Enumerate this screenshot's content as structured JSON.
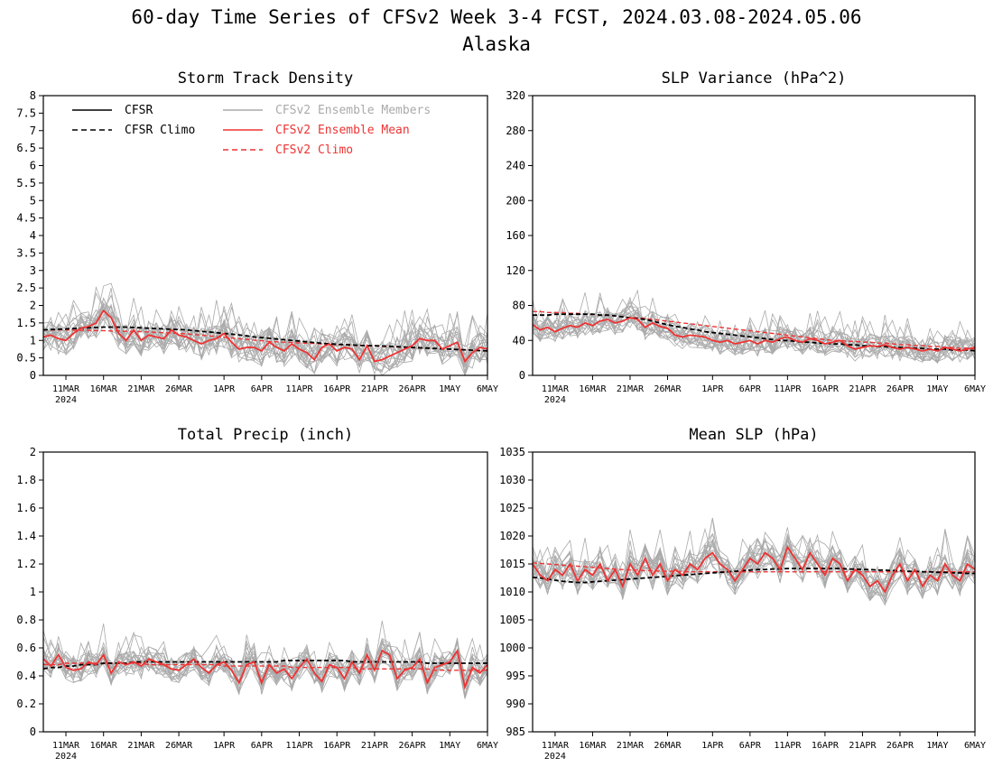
{
  "page": {
    "title_line1": "60-day Time Series of CFSv2 Week 3-4 FCST, 2024.03.08-2024.05.06",
    "title_line2": "Alaska"
  },
  "legend": {
    "cfsr": "CFSR",
    "cfsr_climo": "CFSR Climo",
    "ens_members": "CFSv2 Ensemble Members",
    "ens_mean": "CFSv2 Ensemble Mean",
    "cfsv2_climo": "CFSv2 Climo"
  },
  "colors": {
    "cfsr": "#000000",
    "cfsr_climo": "#000000",
    "ens_members": "#aaaaaa",
    "ens_mean": "#ee3333",
    "cfsv2_climo": "#ee3333"
  },
  "x_axis": {
    "ticks": [
      "11MAR",
      "16MAR",
      "21MAR",
      "26MAR",
      "1APR",
      "6APR",
      "11APR",
      "16APR",
      "21APR",
      "26APR",
      "1MAY",
      "6MAY"
    ],
    "tick_day_index": [
      3,
      8,
      13,
      18,
      24,
      29,
      34,
      39,
      44,
      49,
      54,
      59
    ],
    "year_label": "2024",
    "start_date": "2024-03-08",
    "end_date": "2024-05-06"
  },
  "chart_data": [
    {
      "type": "line",
      "title": "Storm Track Density",
      "ylim": [
        0,
        8
      ],
      "yticks": [
        "0",
        "0.5",
        "1",
        "1.5",
        "2",
        "2.5",
        "3",
        "3.5",
        "4",
        "4.5",
        "5",
        "5.5",
        "6",
        "6.5",
        "7",
        "7.5",
        "8"
      ],
      "legend_position": "top-left",
      "series": [
        {
          "name": "CFSv2 Ensemble Mean",
          "values": [
            1.1,
            1.15,
            1.05,
            1.0,
            1.2,
            1.35,
            1.4,
            1.5,
            1.85,
            1.65,
            1.2,
            1.0,
            1.3,
            1.0,
            1.15,
            1.1,
            1.05,
            1.3,
            1.15,
            1.1,
            1.0,
            0.9,
            1.0,
            1.05,
            1.2,
            0.95,
            0.75,
            0.8,
            0.8,
            0.7,
            0.95,
            0.8,
            0.7,
            0.9,
            0.75,
            0.65,
            0.45,
            0.8,
            0.9,
            0.7,
            0.8,
            0.75,
            0.45,
            0.85,
            0.4,
            0.45,
            0.55,
            0.65,
            0.75,
            0.85,
            1.05,
            1.0,
            1.0,
            0.75,
            0.85,
            0.95,
            0.4,
            0.65,
            0.8,
            0.75
          ]
        },
        {
          "name": "CFSR Climo",
          "values": [
            1.3,
            1.31,
            1.32,
            1.33,
            1.34,
            1.35,
            1.36,
            1.37,
            1.38,
            1.38,
            1.38,
            1.38,
            1.37,
            1.36,
            1.35,
            1.34,
            1.33,
            1.32,
            1.31,
            1.3,
            1.28,
            1.26,
            1.24,
            1.22,
            1.2,
            1.18,
            1.16,
            1.13,
            1.1,
            1.08,
            1.06,
            1.04,
            1.02,
            1.0,
            0.98,
            0.96,
            0.94,
            0.92,
            0.9,
            0.89,
            0.88,
            0.87,
            0.86,
            0.85,
            0.85,
            0.84,
            0.83,
            0.82,
            0.81,
            0.8,
            0.79,
            0.78,
            0.77,
            0.76,
            0.75,
            0.74,
            0.73,
            0.72,
            0.71,
            0.7
          ]
        },
        {
          "name": "CFSv2 Climo",
          "values": [
            1.3,
            1.3,
            1.3,
            1.3,
            1.29,
            1.29,
            1.29,
            1.28,
            1.28,
            1.27,
            1.27,
            1.26,
            1.26,
            1.25,
            1.24,
            1.23,
            1.22,
            1.21,
            1.2,
            1.19,
            1.17,
            1.15,
            1.13,
            1.11,
            1.09,
            1.07,
            1.05,
            1.03,
            1.01,
            0.99,
            0.97,
            0.96,
            0.95,
            0.94,
            0.93,
            0.92,
            0.91,
            0.9,
            0.89,
            0.88,
            0.87,
            0.86,
            0.85,
            0.85,
            0.84,
            0.83,
            0.82,
            0.81,
            0.8,
            0.79,
            0.79,
            0.78,
            0.77,
            0.76,
            0.75,
            0.74,
            0.73,
            0.72,
            0.71,
            0.7
          ]
        }
      ]
    },
    {
      "type": "line",
      "title": "SLP Variance (hPa^2)",
      "ylim": [
        0,
        320
      ],
      "yticks": [
        "0",
        "40",
        "80",
        "120",
        "160",
        "200",
        "240",
        "280",
        "320"
      ],
      "series": [
        {
          "name": "CFSv2 Ensemble Mean",
          "values": [
            58,
            52,
            55,
            50,
            54,
            57,
            55,
            60,
            57,
            62,
            64,
            60,
            62,
            66,
            64,
            55,
            60,
            56,
            54,
            46,
            44,
            46,
            45,
            44,
            40,
            38,
            40,
            36,
            38,
            40,
            36,
            40,
            38,
            42,
            44,
            40,
            38,
            42,
            40,
            36,
            38,
            40,
            34,
            30,
            32,
            34,
            33,
            35,
            32,
            30,
            32,
            30,
            28,
            30,
            28,
            32,
            30,
            28,
            30,
            32
          ]
        },
        {
          "name": "CFSR Climo",
          "values": [
            69,
            69,
            69,
            70,
            70,
            70,
            70,
            70,
            70,
            69,
            69,
            68,
            67,
            66,
            65,
            64,
            62,
            60,
            58,
            56,
            55,
            53,
            52,
            50,
            49,
            48,
            47,
            46,
            45,
            44,
            43,
            42,
            41,
            40,
            40,
            39,
            38,
            38,
            37,
            37,
            36,
            36,
            35,
            35,
            34,
            34,
            33,
            33,
            32,
            32,
            32,
            31,
            31,
            30,
            30,
            30,
            29,
            29,
            29,
            28
          ]
        },
        {
          "name": "CFSv2 Climo",
          "values": [
            73,
            73,
            72,
            72,
            72,
            71,
            71,
            70,
            70,
            69,
            69,
            68,
            67,
            66,
            66,
            65,
            64,
            63,
            62,
            61,
            60,
            59,
            58,
            57,
            56,
            55,
            54,
            53,
            52,
            51,
            50,
            49,
            48,
            47,
            46,
            45,
            44,
            43,
            42,
            41,
            40,
            40,
            39,
            39,
            38,
            38,
            37,
            37,
            36,
            35,
            35,
            34,
            34,
            33,
            33,
            32,
            32,
            31,
            31,
            30
          ]
        }
      ]
    },
    {
      "type": "line",
      "title": "Total Precip (inch)",
      "ylim": [
        0,
        2
      ],
      "yticks": [
        "0",
        "0.2",
        "0.4",
        "0.6",
        "0.8",
        "1",
        "1.2",
        "1.4",
        "1.6",
        "1.8",
        "2"
      ],
      "series": [
        {
          "name": "CFSv2 Ensemble Mean",
          "values": [
            0.52,
            0.47,
            0.55,
            0.46,
            0.44,
            0.45,
            0.5,
            0.48,
            0.55,
            0.42,
            0.5,
            0.48,
            0.5,
            0.47,
            0.52,
            0.5,
            0.48,
            0.45,
            0.44,
            0.48,
            0.52,
            0.46,
            0.42,
            0.48,
            0.5,
            0.44,
            0.35,
            0.48,
            0.5,
            0.35,
            0.48,
            0.42,
            0.45,
            0.38,
            0.46,
            0.52,
            0.42,
            0.36,
            0.48,
            0.46,
            0.38,
            0.5,
            0.42,
            0.55,
            0.44,
            0.58,
            0.55,
            0.38,
            0.44,
            0.46,
            0.52,
            0.35,
            0.46,
            0.48,
            0.5,
            0.58,
            0.32,
            0.46,
            0.42,
            0.48
          ]
        },
        {
          "name": "CFSR Climo",
          "values": [
            0.45,
            0.46,
            0.46,
            0.47,
            0.47,
            0.48,
            0.48,
            0.48,
            0.49,
            0.49,
            0.49,
            0.49,
            0.5,
            0.5,
            0.5,
            0.5,
            0.5,
            0.5,
            0.5,
            0.5,
            0.5,
            0.5,
            0.5,
            0.5,
            0.5,
            0.5,
            0.5,
            0.5,
            0.5,
            0.5,
            0.5,
            0.5,
            0.51,
            0.51,
            0.51,
            0.51,
            0.51,
            0.51,
            0.51,
            0.51,
            0.51,
            0.5,
            0.5,
            0.5,
            0.5,
            0.5,
            0.5,
            0.5,
            0.5,
            0.5,
            0.5,
            0.49,
            0.49,
            0.49,
            0.49,
            0.49,
            0.49,
            0.49,
            0.49,
            0.49
          ]
        },
        {
          "name": "CFSv2 Climo",
          "values": [
            0.48,
            0.48,
            0.48,
            0.49,
            0.49,
            0.49,
            0.49,
            0.49,
            0.49,
            0.49,
            0.49,
            0.49,
            0.49,
            0.49,
            0.48,
            0.48,
            0.48,
            0.48,
            0.48,
            0.48,
            0.48,
            0.48,
            0.48,
            0.48,
            0.47,
            0.47,
            0.47,
            0.47,
            0.47,
            0.47,
            0.47,
            0.47,
            0.47,
            0.46,
            0.46,
            0.46,
            0.46,
            0.46,
            0.46,
            0.46,
            0.46,
            0.46,
            0.45,
            0.45,
            0.45,
            0.45,
            0.45,
            0.45,
            0.45,
            0.45,
            0.45,
            0.45,
            0.44,
            0.44,
            0.44,
            0.44,
            0.44,
            0.44,
            0.44,
            0.44
          ]
        }
      ]
    },
    {
      "type": "line",
      "title": "Mean SLP (hPa)",
      "ylim": [
        985,
        1035
      ],
      "yticks": [
        "985",
        "990",
        "995",
        "1000",
        "1005",
        "1010",
        "1015",
        "1020",
        "1025",
        "1030",
        "1035"
      ],
      "series": [
        {
          "name": "CFSv2 Ensemble Mean",
          "values": [
            1015,
            1013,
            1012,
            1014,
            1013,
            1015,
            1012,
            1014,
            1013,
            1015,
            1012,
            1014,
            1011,
            1015,
            1013,
            1016,
            1013,
            1015,
            1012,
            1014,
            1013,
            1015,
            1014,
            1016,
            1017,
            1015,
            1014,
            1012,
            1014,
            1016,
            1015,
            1017,
            1016,
            1014,
            1018,
            1016,
            1014,
            1017,
            1015,
            1013,
            1016,
            1015,
            1012,
            1014,
            1013,
            1011,
            1012,
            1010,
            1013,
            1015,
            1012,
            1014,
            1011,
            1013,
            1012,
            1015,
            1013,
            1012,
            1015,
            1014
          ]
        },
        {
          "name": "CFSR Climo",
          "values": [
            1012.6,
            1012.5,
            1012.3,
            1012.1,
            1011.9,
            1011.8,
            1011.7,
            1011.7,
            1011.8,
            1011.9,
            1012.0,
            1012.1,
            1012.2,
            1012.3,
            1012.4,
            1012.5,
            1012.6,
            1012.7,
            1012.8,
            1012.9,
            1013.0,
            1013.1,
            1013.2,
            1013.3,
            1013.4,
            1013.5,
            1013.6,
            1013.7,
            1013.8,
            1013.9,
            1014.0,
            1014.0,
            1014.1,
            1014.1,
            1014.2,
            1014.2,
            1014.2,
            1014.2,
            1014.2,
            1014.2,
            1014.2,
            1014.2,
            1014.1,
            1014.1,
            1014.0,
            1014.0,
            1013.9,
            1013.9,
            1013.8,
            1013.8,
            1013.7,
            1013.7,
            1013.6,
            1013.6,
            1013.5,
            1013.5,
            1013.4,
            1013.4,
            1013.3,
            1013.3
          ]
        },
        {
          "name": "CFSv2 Climo",
          "values": [
            1015.2,
            1015.1,
            1015.0,
            1014.9,
            1014.8,
            1014.7,
            1014.6,
            1014.5,
            1014.4,
            1014.3,
            1014.2,
            1014.1,
            1014.0,
            1013.9,
            1013.9,
            1013.8,
            1013.8,
            1013.7,
            1013.7,
            1013.7,
            1013.6,
            1013.6,
            1013.6,
            1013.6,
            1013.6,
            1013.6,
            1013.6,
            1013.6,
            1013.6,
            1013.6,
            1013.6,
            1013.6,
            1013.6,
            1013.6,
            1013.6,
            1013.6,
            1013.6,
            1013.6,
            1013.6,
            1013.6,
            1013.6,
            1013.6,
            1013.6,
            1013.6,
            1013.6,
            1013.6,
            1013.6,
            1013.6,
            1013.6,
            1013.6,
            1013.6,
            1013.6,
            1013.6,
            1013.6,
            1013.6,
            1013.6,
            1013.6,
            1013.6,
            1013.6,
            1013.6
          ]
        }
      ]
    }
  ]
}
